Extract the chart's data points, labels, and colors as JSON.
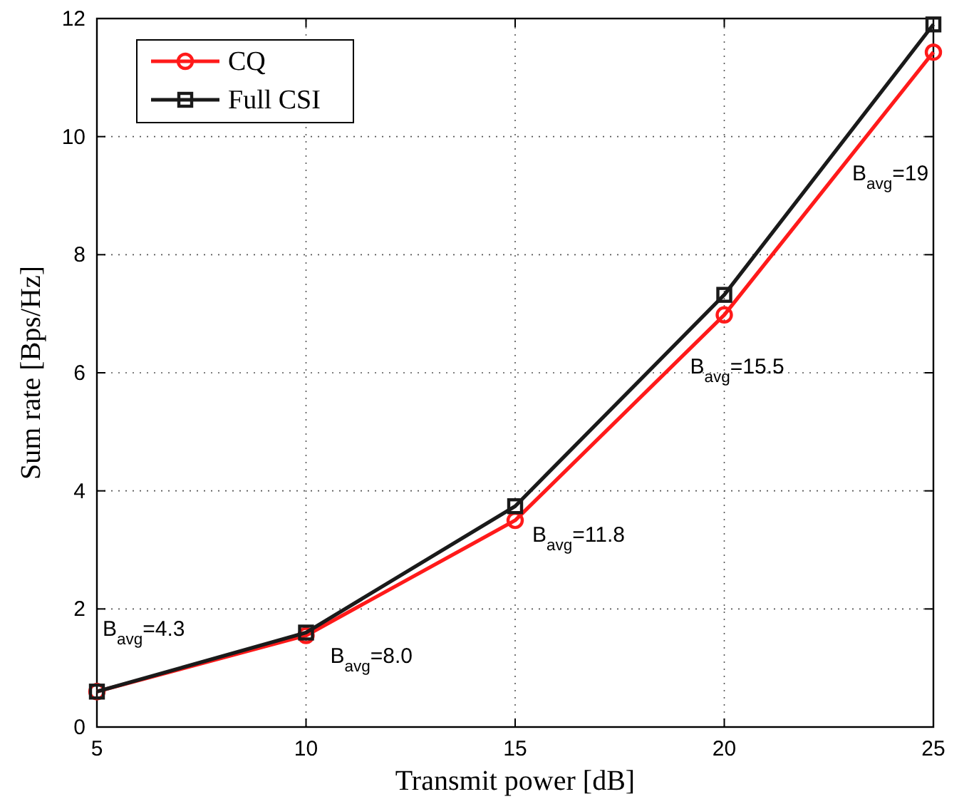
{
  "chart_data": {
    "type": "line",
    "xlabel": "Transmit power [dB]",
    "ylabel": "Sum rate [Bps/Hz]",
    "x": [
      5,
      10,
      15,
      20,
      25
    ],
    "series": [
      {
        "name": "CQ",
        "color": "#ff1a1a",
        "marker": "circle",
        "values": [
          0.6,
          1.55,
          3.5,
          6.98,
          11.43
        ]
      },
      {
        "name": "Full CSI",
        "color": "#1a1a1a",
        "marker": "square",
        "values": [
          0.6,
          1.6,
          3.74,
          7.32,
          11.9
        ]
      }
    ],
    "xlim": [
      5,
      25
    ],
    "xticks": [
      5,
      10,
      15,
      20,
      25
    ],
    "ylim": [
      0,
      12
    ],
    "yticks": [
      0,
      2,
      4,
      6,
      8,
      10,
      12
    ],
    "grid": true,
    "legend": "top left",
    "line_style": "solid",
    "annotations": [
      "B$_{avg}$=4.3",
      "B$_{avg}$=8.0",
      "B$_{avg}$=11.8",
      "B$_{avg}$=15.5",
      "B$_{avg}$=19"
    ]
  }
}
